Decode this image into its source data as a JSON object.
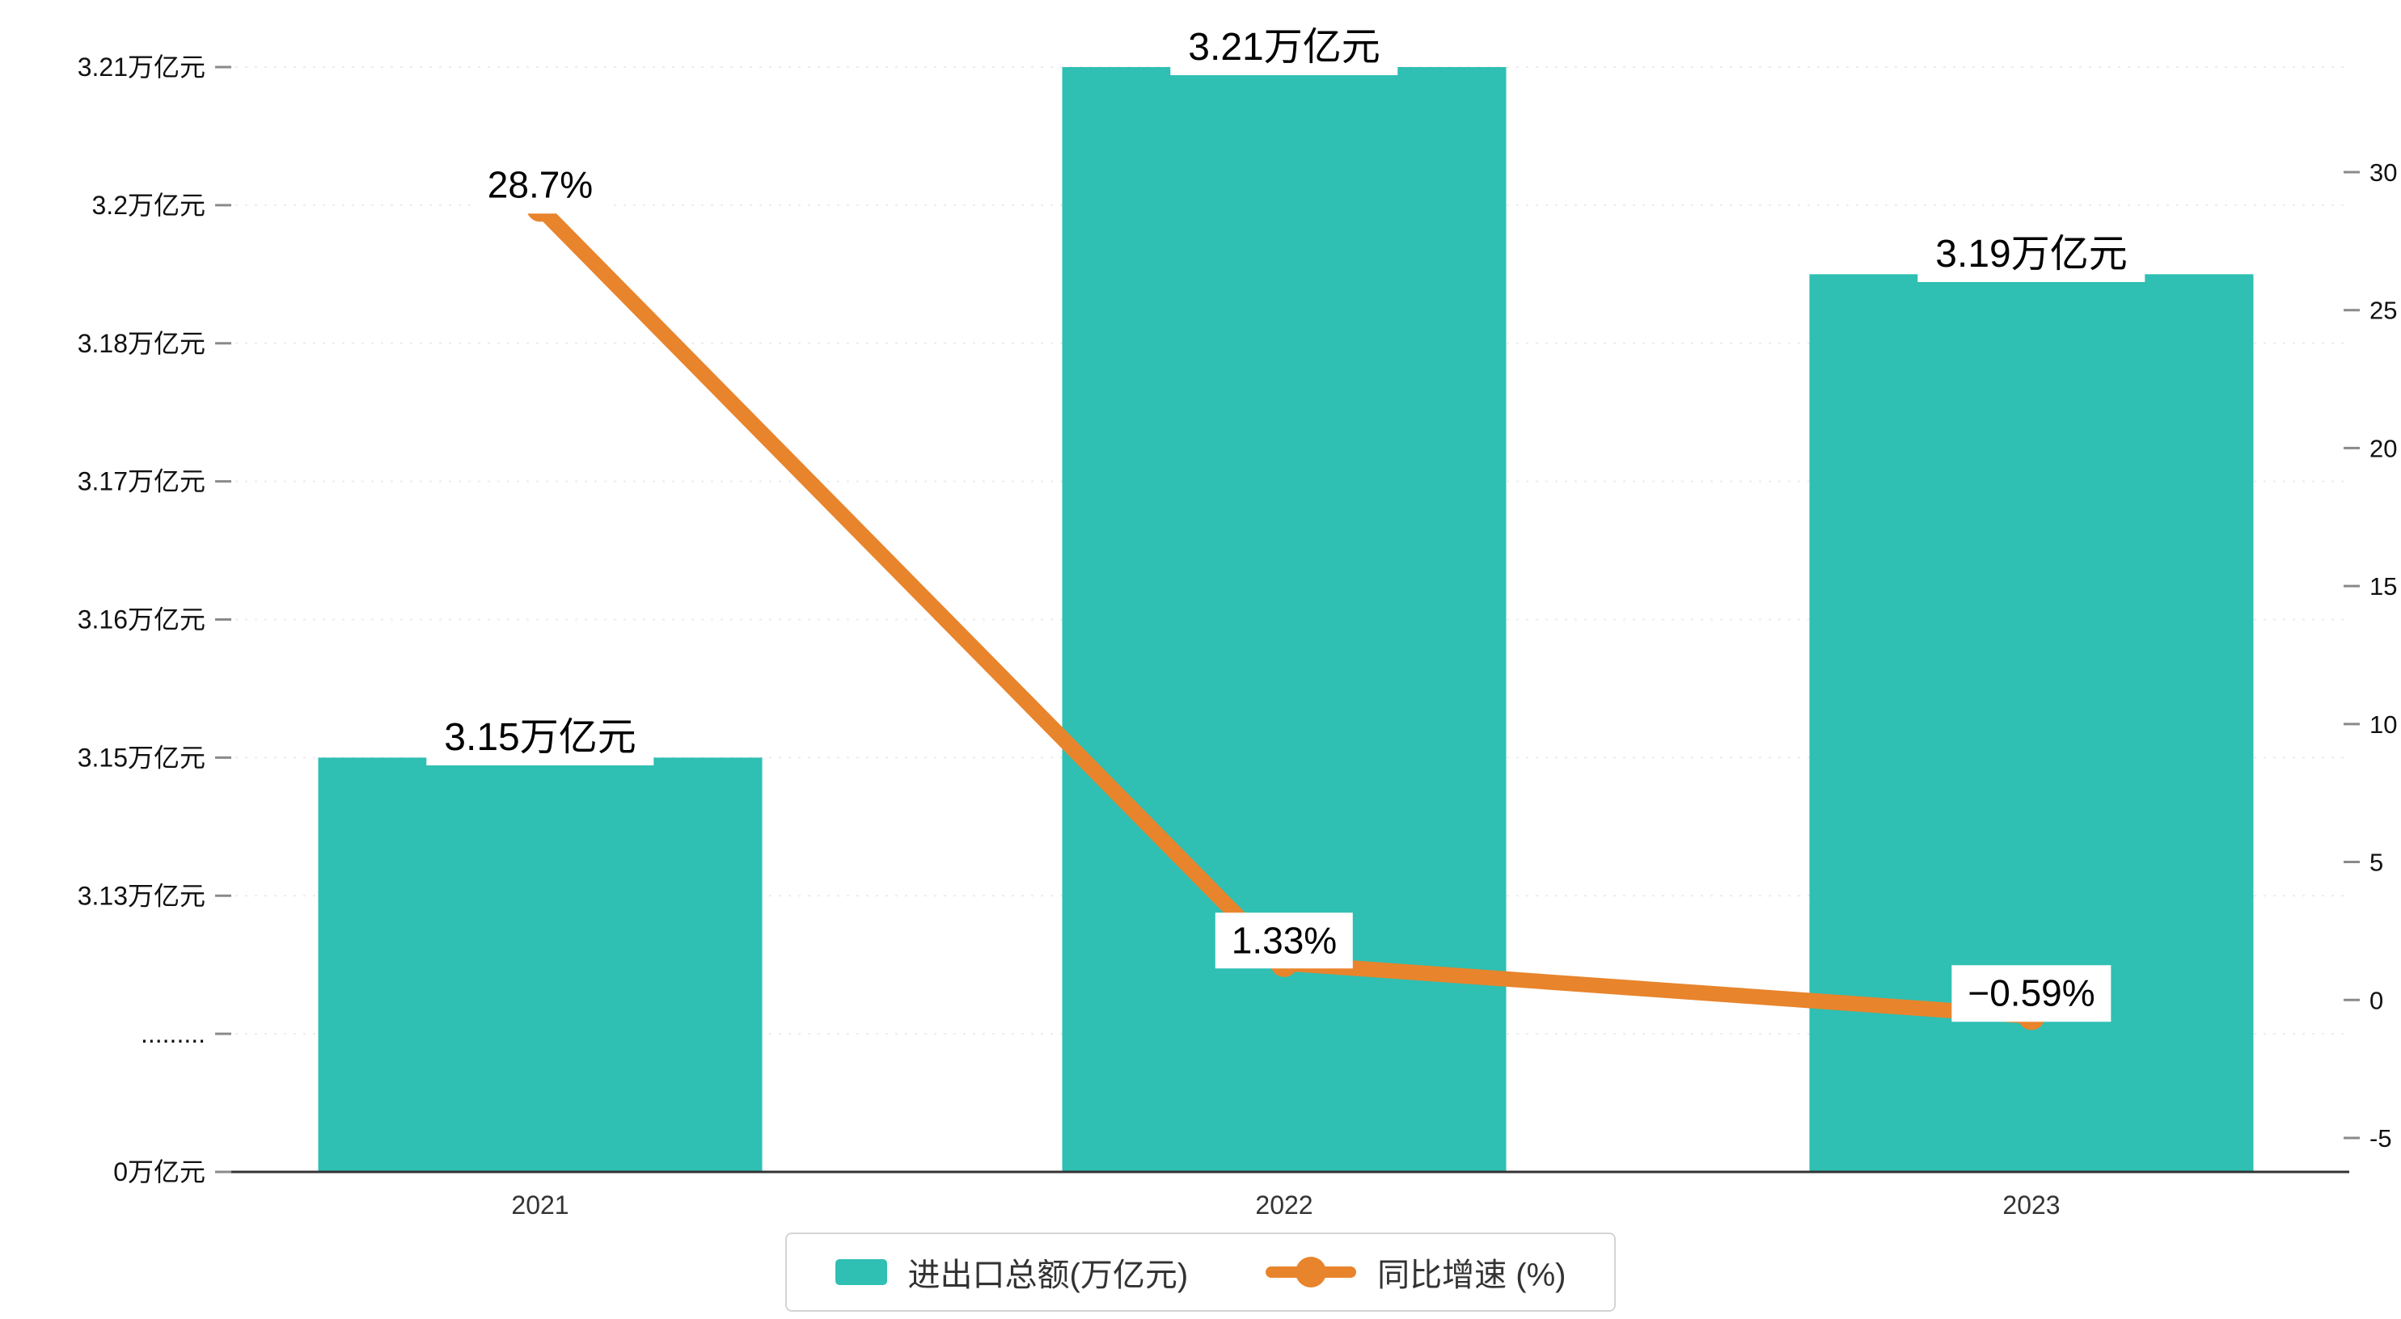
{
  "chart_data": {
    "type": "bar+line",
    "categories": [
      "2021",
      "2022",
      "2023"
    ],
    "series": [
      {
        "name": "进出口总额(万亿元)",
        "type": "bar",
        "axis": "left",
        "values": [
          3.15,
          3.21,
          3.19
        ],
        "labels": [
          "3.15万亿元",
          "3.21万亿元",
          "3.19万亿元"
        ],
        "color": "#2fbfb3"
      },
      {
        "name": "同比增速 (%)",
        "type": "line",
        "axis": "right",
        "values": [
          28.7,
          1.33,
          -0.59
        ],
        "labels": [
          "28.7%",
          "1.33%",
          "−0.59%"
        ],
        "color": "#e8842c"
      }
    ],
    "left_axis": {
      "tick_labels": [
        "3.21万亿元",
        "3.2万亿元",
        "3.18万亿元",
        "3.17万亿元",
        "3.16万亿元",
        "3.15万亿元",
        "3.13万亿元",
        ".........",
        "0万亿元"
      ],
      "tick_values": [
        3.21,
        3.2,
        3.18,
        3.17,
        3.16,
        3.15,
        3.13,
        null,
        0
      ],
      "broken_axis": true
    },
    "right_axis": {
      "tick_labels": [
        "30",
        "25",
        "20",
        "15",
        "10",
        "5",
        "0",
        "-5"
      ],
      "tick_values": [
        30,
        25,
        20,
        15,
        10,
        5,
        0,
        -5
      ],
      "range": [
        -5,
        30
      ]
    },
    "grid": true,
    "legend_position": "bottom",
    "legend": [
      {
        "label": "进出口总额(万亿元)",
        "swatch": "bar",
        "color": "#2fbfb3"
      },
      {
        "label": "同比增速 (%)",
        "swatch": "line",
        "color": "#e8842c"
      }
    ],
    "colors": {
      "bar": "#2fbfb3",
      "line": "#e8842c",
      "axis_line": "#333333",
      "tick": "#8a8a8a",
      "gridline": "#ececec",
      "text": "#111111"
    }
  }
}
